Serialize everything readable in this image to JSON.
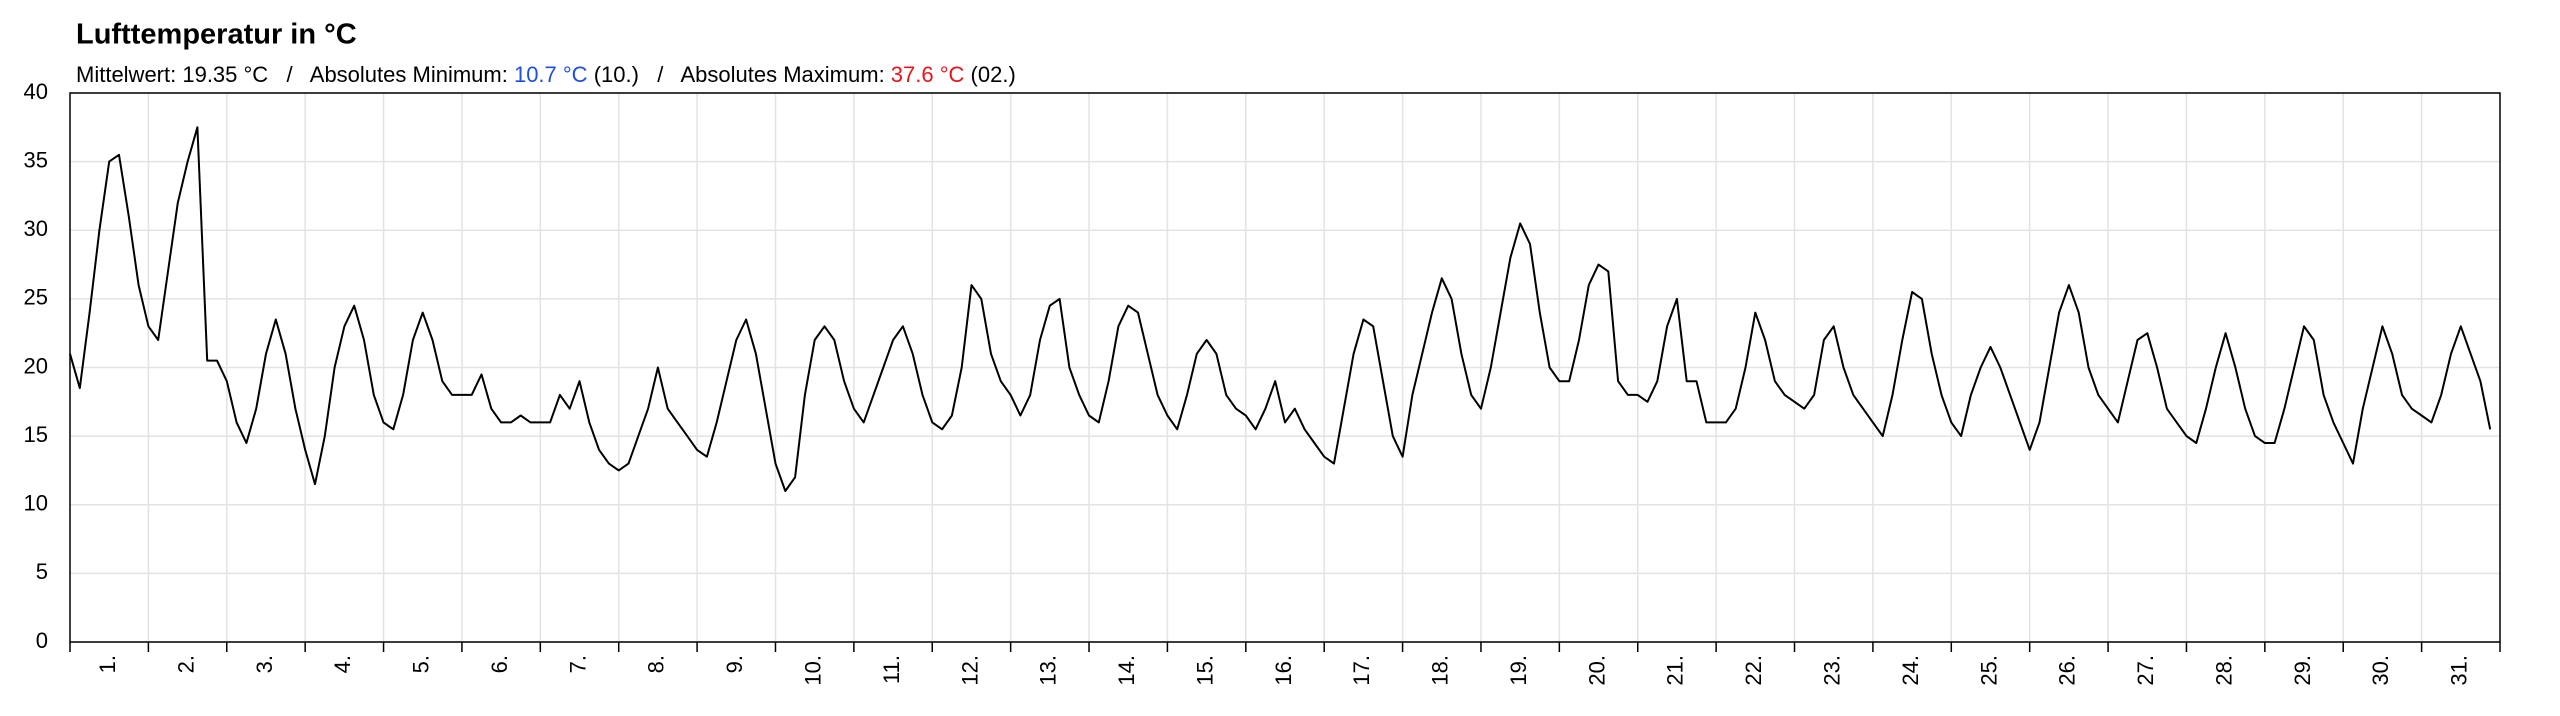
{
  "chart_data": {
    "type": "line",
    "title": "Lufttemperatur in °C",
    "subtitle": [
      {
        "text": "Mittelwert: 19.35 °C   /   Absolutes Minimum: ",
        "color": "#000000"
      },
      {
        "text": "10.7 °C",
        "color": "#1f4fe0"
      },
      {
        "text": " (10.)   /   Absolutes Maximum: ",
        "color": "#000000"
      },
      {
        "text": "37.6 °C",
        "color": "#e8141b"
      },
      {
        "text": " (02.)",
        "color": "#000000"
      }
    ],
    "color": "#000000",
    "grid": true,
    "ylim": [
      0,
      40
    ],
    "yticks": [
      0,
      5,
      10,
      15,
      20,
      25,
      30,
      35,
      40
    ],
    "days": [
      {
        "label": "1.",
        "values": [
          21,
          18.5,
          24,
          30,
          35,
          35.5,
          31,
          26
        ]
      },
      {
        "label": "2.",
        "values": [
          23,
          22,
          27,
          32,
          35,
          37.5,
          20.5,
          20.5
        ]
      },
      {
        "label": "3.",
        "values": [
          19,
          16,
          14.5,
          17,
          21,
          23.5,
          21,
          17
        ]
      },
      {
        "label": "4.",
        "values": [
          14,
          11.5,
          15,
          20,
          23,
          24.5,
          22,
          18
        ]
      },
      {
        "label": "5.",
        "values": [
          16,
          15.5,
          18,
          22,
          24,
          22,
          19,
          18
        ]
      },
      {
        "label": "6.",
        "values": [
          18,
          18,
          19.5,
          17,
          16,
          16,
          16.5,
          16
        ]
      },
      {
        "label": "7.",
        "values": [
          16,
          16,
          18,
          17,
          19,
          16,
          14,
          13
        ]
      },
      {
        "label": "8.",
        "values": [
          12.5,
          13,
          15,
          17,
          20,
          17,
          16,
          15
        ]
      },
      {
        "label": "9.",
        "values": [
          14,
          13.5,
          16,
          19,
          22,
          23.5,
          21,
          17
        ]
      },
      {
        "label": "10.",
        "values": [
          13,
          11,
          12,
          18,
          22,
          23,
          22,
          19
        ]
      },
      {
        "label": "11.",
        "values": [
          17,
          16,
          18,
          20,
          22,
          23,
          21,
          18
        ]
      },
      {
        "label": "12.",
        "values": [
          16,
          15.5,
          16.5,
          20,
          26,
          25,
          21,
          19
        ]
      },
      {
        "label": "13.",
        "values": [
          18,
          16.5,
          18,
          22,
          24.5,
          25,
          20,
          18
        ]
      },
      {
        "label": "14.",
        "values": [
          16.5,
          16,
          19,
          23,
          24.5,
          24,
          21,
          18
        ]
      },
      {
        "label": "15.",
        "values": [
          16.5,
          15.5,
          18,
          21,
          22,
          21,
          18,
          17
        ]
      },
      {
        "label": "16.",
        "values": [
          16.5,
          15.5,
          17,
          19,
          16,
          17,
          15.5,
          14.5
        ]
      },
      {
        "label": "17.",
        "values": [
          13.5,
          13,
          17,
          21,
          23.5,
          23,
          19,
          15
        ]
      },
      {
        "label": "18.",
        "values": [
          13.5,
          18,
          21,
          24,
          26.5,
          25,
          21,
          18
        ]
      },
      {
        "label": "19.",
        "values": [
          17,
          20,
          24,
          28,
          30.5,
          29,
          24,
          20
        ]
      },
      {
        "label": "20.",
        "values": [
          19,
          19,
          22,
          26,
          27.5,
          27,
          19,
          18
        ]
      },
      {
        "label": "21.",
        "values": [
          18,
          17.5,
          19,
          23,
          25,
          19,
          19,
          16
        ]
      },
      {
        "label": "22.",
        "values": [
          16,
          16,
          17,
          20,
          24,
          22,
          19,
          18
        ]
      },
      {
        "label": "23.",
        "values": [
          17.5,
          17,
          18,
          22,
          23,
          20,
          18,
          17
        ]
      },
      {
        "label": "24.",
        "values": [
          16,
          15,
          18,
          22,
          25.5,
          25,
          21,
          18
        ]
      },
      {
        "label": "25.",
        "values": [
          16,
          15,
          18,
          20,
          21.5,
          20,
          18,
          16
        ]
      },
      {
        "label": "26.",
        "values": [
          14,
          16,
          20,
          24,
          26,
          24,
          20,
          18
        ]
      },
      {
        "label": "27.",
        "values": [
          17,
          16,
          19,
          22,
          22.5,
          20,
          17,
          16
        ]
      },
      {
        "label": "28.",
        "values": [
          15,
          14.5,
          17,
          20,
          22.5,
          20,
          17,
          15
        ]
      },
      {
        "label": "29.",
        "values": [
          14.5,
          14.5,
          17,
          20,
          23,
          22,
          18,
          16
        ]
      },
      {
        "label": "30.",
        "values": [
          14.5,
          13,
          17,
          20,
          23,
          21,
          18,
          17
        ]
      },
      {
        "label": "31.",
        "values": [
          16.5,
          16,
          18,
          21,
          23,
          21,
          19,
          15.5
        ]
      }
    ]
  }
}
